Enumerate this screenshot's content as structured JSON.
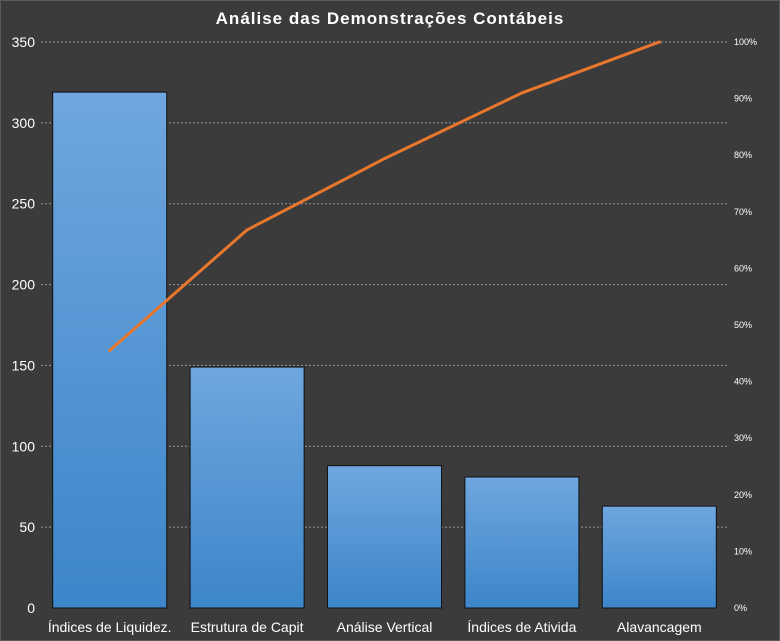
{
  "chart_data": {
    "type": "bar",
    "title": "Análise das Demonstrações Contábeis",
    "categories": [
      "Índices de Liquidez.",
      "Estrutura de Capit",
      "Análise Vertical",
      "Índices de Ativida",
      "Alavancagem"
    ],
    "series": [
      {
        "type": "bar",
        "axis": "left",
        "values": [
          319,
          149,
          88,
          81,
          63
        ]
      },
      {
        "type": "line",
        "axis": "right",
        "values": [
          45.5,
          66.8,
          79.4,
          91.0,
          100.0
        ]
      }
    ],
    "y_left": {
      "min": 0,
      "max": 350,
      "ticks": [
        0,
        50,
        100,
        150,
        200,
        250,
        300,
        350
      ]
    },
    "y_right": {
      "min": 0,
      "max": 100,
      "ticks": [
        0,
        10,
        20,
        30,
        40,
        50,
        60,
        70,
        80,
        90,
        100
      ],
      "suffix": "%"
    },
    "grid": true,
    "legend": "none",
    "colors": {
      "background": "#3b3b3b",
      "bar_top": "#6fa6df",
      "bar_bottom": "#3c86c9",
      "line": "#e8772e",
      "grid": "#9a9a9a",
      "text": "#ffffff"
    }
  }
}
